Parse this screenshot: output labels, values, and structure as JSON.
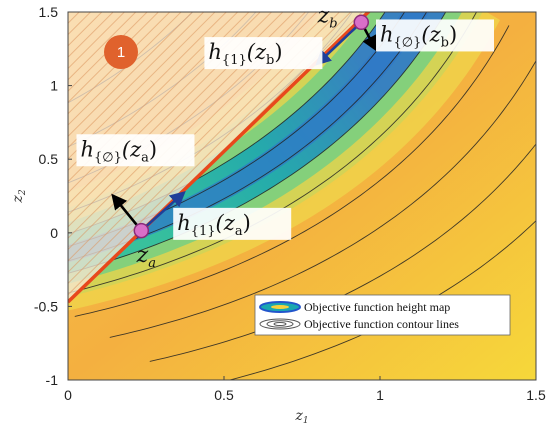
{
  "chart_data": {
    "type": "heatmap",
    "title": "",
    "xlabel": "z",
    "xlabel_sub": "1",
    "ylabel": "z",
    "ylabel_sub": "2",
    "xlim": [
      0,
      1.5
    ],
    "ylim": [
      -1,
      1.5
    ],
    "xticks": [
      "0",
      "0.5",
      "1",
      "1.5"
    ],
    "yticks": [
      "-1",
      "-0.5",
      "0",
      "0.5",
      "1",
      "1.5"
    ],
    "badge": "1",
    "constraint_line": {
      "x": [
        0,
        1.5
      ],
      "y": [
        -0.47,
        2.6
      ],
      "color": "#e8481c"
    },
    "valley_center": {
      "x": [
        0.2,
        1.05
      ],
      "y": [
        0.0,
        1.3
      ]
    },
    "points": [
      {
        "name": "za",
        "label": "z",
        "sub": "a",
        "x": 0.235,
        "y": 0.015
      },
      {
        "name": "zb",
        "label": "z",
        "sub": "b",
        "x": 0.94,
        "y": 1.43
      }
    ],
    "arrows": [
      {
        "name": "h-empty-za",
        "from": [
          0.235,
          0.015
        ],
        "to": [
          0.145,
          0.25
        ],
        "color": "#000000"
      },
      {
        "name": "h-1-za",
        "from": [
          0.235,
          0.015
        ],
        "to": [
          0.37,
          0.27
        ],
        "color": "#1f3f9a"
      },
      {
        "name": "h-1-zb",
        "from": [
          0.94,
          1.43
        ],
        "to": [
          0.8,
          1.15
        ],
        "color": "#1f3f9a"
      },
      {
        "name": "h-empty-zb",
        "from": [
          0.94,
          1.43
        ],
        "to": [
          0.985,
          1.25
        ],
        "color": "#000000"
      }
    ],
    "annotations": [
      {
        "name": "label-h-empty-za",
        "text": "h",
        "sub": "{∅}",
        "arg": "(z",
        "argsub": "a",
        "close": ")",
        "at": [
          0.04,
          0.52
        ]
      },
      {
        "name": "label-h-1-za",
        "text": "h",
        "sub": "{1}",
        "arg": "(z",
        "argsub": "a",
        "close": ")",
        "at": [
          0.35,
          0.02
        ]
      },
      {
        "name": "label-h-1-zb",
        "text": "h",
        "sub": "{1}",
        "arg": "(z",
        "argsub": "b",
        "close": ")",
        "at": [
          0.45,
          1.18
        ]
      },
      {
        "name": "label-h-empty-zb",
        "text": "h",
        "sub": "{∅}",
        "arg": "(z",
        "argsub": "b",
        "close": ")",
        "at": [
          1.0,
          1.3
        ]
      }
    ],
    "legend": {
      "placement": "bottom-right",
      "entries": [
        "Objective function height map",
        "Objective function contour lines"
      ]
    },
    "colors": {
      "ridge": "#f5d23c",
      "valley": "#1aa7b0",
      "deep": "#2255cc",
      "hatch": "#f2c9a8",
      "badge": "#e0622d"
    }
  }
}
